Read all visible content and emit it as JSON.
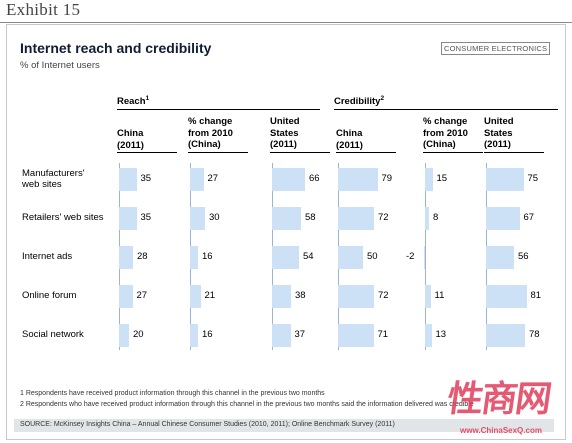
{
  "exhibit": "Exhibit 15",
  "tag": "CONSUMER ELECTRONICS",
  "chart_data": {
    "type": "bar",
    "title": "Internet reach and credibility",
    "subtitle": "% of Internet users",
    "categories": [
      "Manufacturers' web sites",
      "Retailers' web sites",
      "Internet ads",
      "Online forum",
      "Social network"
    ],
    "groups": [
      {
        "name": "Reach",
        "footnote_mark": "1"
      },
      {
        "name": "Credibility",
        "footnote_mark": "2"
      }
    ],
    "series": [
      {
        "group": "Reach",
        "name": "China (2011)",
        "header": [
          "China",
          "(2011)"
        ],
        "values": [
          35,
          35,
          28,
          27,
          20
        ]
      },
      {
        "group": "Reach",
        "name": "% change from 2010 (China)",
        "header": [
          "% change",
          "from 2010",
          "(China)"
        ],
        "values": [
          27,
          30,
          16,
          21,
          16
        ]
      },
      {
        "group": "Reach",
        "name": "United States (2011)",
        "header": [
          "United",
          "States",
          "(2011)"
        ],
        "values": [
          66,
          58,
          54,
          38,
          37
        ]
      },
      {
        "group": "Credibility",
        "name": "China (2011)",
        "header": [
          "China",
          "(2011)"
        ],
        "values": [
          79,
          72,
          50,
          72,
          71
        ]
      },
      {
        "group": "Credibility",
        "name": "% change from 2010 (China)",
        "header": [
          "% change",
          "from 2010",
          "(China)"
        ],
        "values": [
          15,
          8,
          -2,
          11,
          13
        ]
      },
      {
        "group": "Credibility",
        "name": "United States (2011)",
        "header": [
          "United",
          "States",
          "(2011)"
        ],
        "values": [
          75,
          67,
          56,
          81,
          78
        ]
      }
    ],
    "category_lines": [
      [
        "Manufacturers'",
        "web sites"
      ],
      [
        "Retailers' web sites"
      ],
      [
        "Internet ads"
      ],
      [
        "Online forum"
      ],
      [
        "Social network"
      ]
    ]
  },
  "footnotes": [
    "1 Respondents have received product information through this channel in the previous two months",
    "2 Respondents who have received product information through this channel in the previous two months said the information delivered was credible"
  ],
  "source": "SOURCE: McKinsey Insights China – Annual Chinese Consumer Studies (2010, 2011); Online Benchmark Survey (2011)",
  "watermark": "性商网",
  "watermark_url": "www.ChinaSexQ.com",
  "colors": {
    "bar": "#cce0f6",
    "axis": "#9bb4d3",
    "title": "#0f1e33"
  }
}
